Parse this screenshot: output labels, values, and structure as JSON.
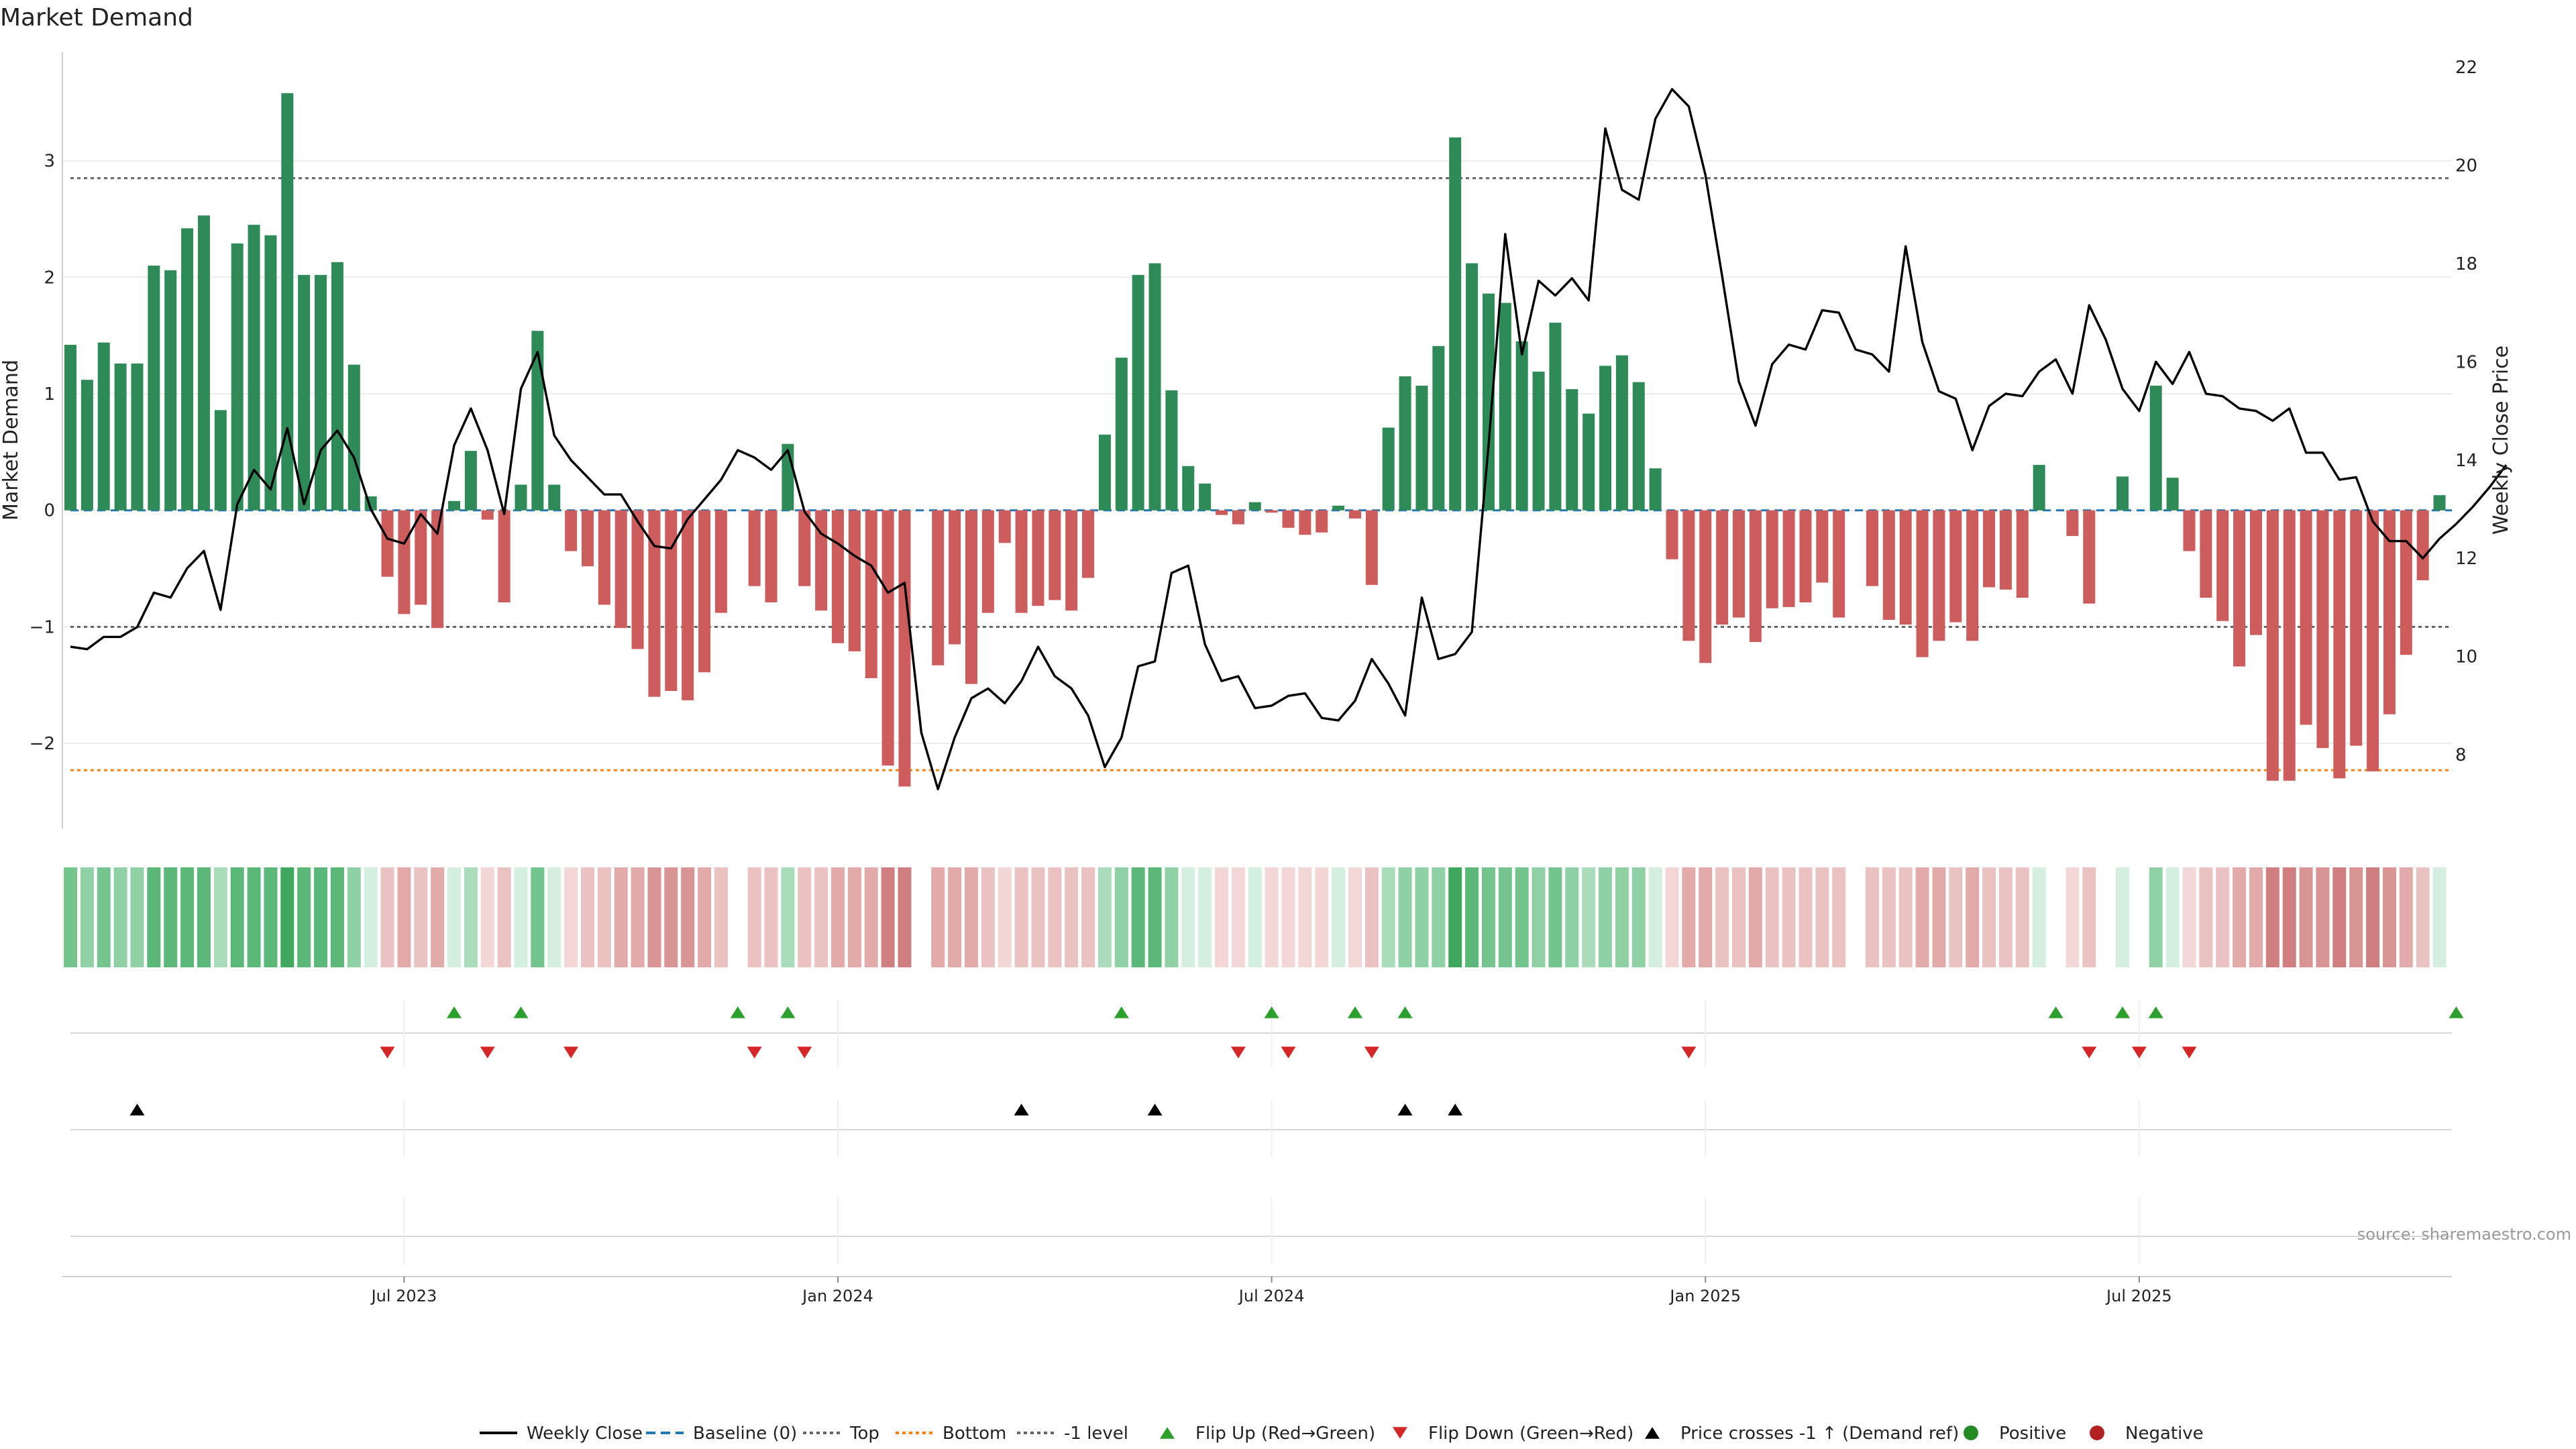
{
  "title": "Market Demand",
  "source": "source: sharemaestro.com",
  "colors": {
    "positive": "#2e8b57",
    "negative": "#cd5c5c",
    "price": "#000000",
    "baseline": "#1f77b4",
    "top": "#666666",
    "bottom": "#ff7f0e",
    "flip_up": "#2ca02c",
    "flip_down": "#d62728"
  },
  "legend": [
    {
      "label": "Weekly Close",
      "kind": "line",
      "color": "#000000"
    },
    {
      "label": "Baseline (0)",
      "kind": "dash",
      "color": "#1f77b4"
    },
    {
      "label": "Top",
      "kind": "dot",
      "color": "#666666"
    },
    {
      "label": "Bottom",
      "kind": "dot",
      "color": "#ff7f0e"
    },
    {
      "label": "-1 level",
      "kind": "dot",
      "color": "#666666"
    },
    {
      "label": "Flip Up (Red→Green)",
      "kind": "tri-up",
      "color": "#2ca02c"
    },
    {
      "label": "Flip Down (Green→Red)",
      "kind": "tri-down",
      "color": "#d62728"
    },
    {
      "label": "Price crosses -1 ↑ (Demand ref)",
      "kind": "tri-up",
      "color": "#000000"
    },
    {
      "label": "Positive",
      "kind": "circle",
      "color": "#228b22"
    },
    {
      "label": "Negative",
      "kind": "circle",
      "color": "#b22222"
    }
  ],
  "chart_data": {
    "type": "bar",
    "x_ticks": [
      {
        "label": "Jul 2023",
        "index": 20
      },
      {
        "label": "Jan 2024",
        "index": 46
      },
      {
        "label": "Jul 2024",
        "index": 72
      },
      {
        "label": "Jan 2025",
        "index": 98
      },
      {
        "label": "Jul 2025",
        "index": 124
      }
    ],
    "ylabel": "Market Demand",
    "ylabel_right": "Weekly Close Price",
    "ylim": [
      -2.73,
      3.93
    ],
    "yticks": [
      -2,
      -1,
      0,
      1,
      2,
      3
    ],
    "ylim_right": [
      6.5,
      22.3
    ],
    "yticks_right": [
      8,
      10,
      12,
      14,
      16,
      18,
      20,
      22
    ],
    "top_level": 2.85,
    "bottom_level": -2.23,
    "minus_one_level": -1,
    "baseline": 0,
    "demand": [
      1.42,
      1.12,
      1.44,
      1.26,
      1.26,
      2.1,
      2.06,
      2.42,
      2.53,
      0.86,
      2.29,
      2.45,
      2.36,
      3.58,
      2.02,
      2.02,
      2.13,
      1.25,
      0.12,
      -0.57,
      -0.89,
      -0.81,
      -1.01,
      0.08,
      0.51,
      -0.08,
      -0.79,
      0.22,
      1.54,
      0.22,
      -0.35,
      -0.48,
      -0.81,
      -1.01,
      -1.19,
      -1.6,
      -1.55,
      -1.63,
      -1.39,
      -0.88,
      0.0,
      -0.65,
      -0.79,
      0.57,
      -0.65,
      -0.86,
      -1.14,
      -1.21,
      -1.44,
      -2.19,
      -2.37,
      0.0,
      -1.33,
      -1.15,
      -1.49,
      -0.88,
      -0.28,
      -0.88,
      -0.82,
      -0.77,
      -0.86,
      -0.58,
      0.65,
      1.31,
      2.02,
      2.12,
      1.03,
      0.38,
      0.23,
      -0.04,
      -0.12,
      0.07,
      -0.02,
      -0.15,
      -0.21,
      -0.19,
      0.04,
      -0.07,
      -0.64,
      0.71,
      1.15,
      1.07,
      1.41,
      3.2,
      2.12,
      1.86,
      1.78,
      1.45,
      1.19,
      1.61,
      1.04,
      0.83,
      1.24,
      1.33,
      1.1,
      0.36,
      -0.42,
      -1.12,
      -1.31,
      -0.98,
      -0.92,
      -1.13,
      -0.84,
      -0.83,
      -0.79,
      -0.62,
      -0.92,
      0.0,
      -0.65,
      -0.94,
      -0.98,
      -1.26,
      -1.12,
      -0.96,
      -1.12,
      -0.66,
      -0.68,
      -0.75,
      0.39,
      0.0,
      -0.22,
      -0.8,
      0.0,
      0.29,
      0.0,
      1.07,
      0.28,
      -0.35,
      -0.75,
      -0.95,
      -1.34,
      -1.07,
      -2.32,
      -2.32,
      -1.84,
      -2.04,
      -2.3,
      -2.02,
      -2.24,
      -1.75,
      -1.24,
      -0.6,
      0.13
    ],
    "price": [
      10.2,
      10.15,
      10.4,
      10.4,
      10.6,
      11.3,
      11.2,
      11.8,
      12.15,
      10.95,
      13.1,
      13.8,
      13.4,
      14.65,
      13.1,
      14.2,
      14.6,
      14.05,
      13.0,
      12.4,
      12.3,
      12.9,
      12.5,
      14.3,
      15.05,
      14.2,
      12.9,
      15.45,
      16.2,
      14.5,
      14.0,
      13.65,
      13.3,
      13.3,
      12.75,
      12.25,
      12.2,
      12.8,
      13.2,
      13.6,
      14.2,
      14.05,
      13.8,
      14.2,
      12.95,
      12.5,
      12.3,
      12.05,
      11.85,
      11.3,
      11.5,
      8.45,
      7.3,
      8.35,
      9.15,
      9.35,
      9.05,
      9.5,
      10.2,
      9.6,
      9.35,
      8.8,
      7.75,
      8.35,
      9.8,
      9.9,
      11.7,
      11.85,
      10.25,
      9.5,
      9.6,
      8.95,
      9.0,
      9.2,
      9.25,
      8.75,
      8.7,
      9.1,
      9.95,
      9.45,
      8.8,
      11.2,
      9.95,
      10.05,
      10.5,
      14.3,
      18.6,
      16.15,
      17.65,
      17.35,
      17.7,
      17.25,
      20.75,
      19.5,
      19.3,
      20.95,
      21.55,
      21.2,
      19.8,
      17.75,
      15.6,
      14.7,
      15.95,
      16.35,
      16.25,
      17.05,
      17.0,
      16.25,
      16.15,
      15.8,
      18.35,
      16.4,
      15.4,
      15.25,
      14.2,
      15.1,
      15.35,
      15.3,
      15.8,
      16.05,
      15.35,
      17.15,
      16.45,
      15.45,
      15.0,
      16.0,
      15.55,
      16.2,
      15.35,
      15.3,
      15.05,
      15.0,
      14.8,
      15.05,
      14.15,
      14.15,
      13.6,
      13.65,
      12.75,
      12.35,
      12.35,
      12.0,
      12.4,
      12.7,
      13.05,
      13.45,
      13.9
    ],
    "strip_levels": [
      4,
      3,
      4,
      3,
      3,
      5,
      5,
      5,
      5,
      2,
      5,
      5,
      5,
      6,
      5,
      5,
      5,
      3,
      1,
      -2,
      -3,
      -2,
      -3,
      1,
      2,
      -1,
      -2,
      1,
      4,
      1,
      -1,
      -2,
      -2,
      -3,
      -3,
      -4,
      -4,
      -4,
      -3,
      -2,
      0,
      -2,
      -2,
      2,
      -2,
      -2,
      -3,
      -3,
      -3,
      -5,
      -5,
      0,
      -3,
      -3,
      -3,
      -2,
      -1,
      -2,
      -2,
      -2,
      -2,
      -2,
      2,
      3,
      5,
      5,
      3,
      1,
      1,
      -1,
      -1,
      1,
      -1,
      -1,
      -1,
      -1,
      1,
      -1,
      -2,
      2,
      3,
      3,
      3,
      6,
      5,
      4,
      4,
      4,
      3,
      4,
      3,
      2,
      3,
      3,
      3,
      1,
      -1,
      -3,
      -3,
      -2,
      -2,
      -3,
      -2,
      -2,
      -2,
      -2,
      -2,
      0,
      -2,
      -2,
      -2,
      -3,
      -3,
      -2,
      -3,
      -2,
      -2,
      -2,
      1,
      0,
      -1,
      -2,
      0,
      1,
      0,
      3,
      1,
      -1,
      -2,
      -2,
      -3,
      -3,
      -5,
      -5,
      -4,
      -4,
      -5,
      -4,
      -5,
      -4,
      -3,
      -2,
      1
    ],
    "flip_up_indices": [
      23,
      27,
      40,
      43,
      63,
      72,
      77,
      80,
      119,
      123,
      125,
      143
    ],
    "flip_down_indices": [
      19,
      25,
      30,
      41,
      44,
      70,
      73,
      78,
      97,
      121,
      124,
      127
    ],
    "price_cross_indices": [
      4,
      57,
      65,
      80,
      83
    ]
  }
}
